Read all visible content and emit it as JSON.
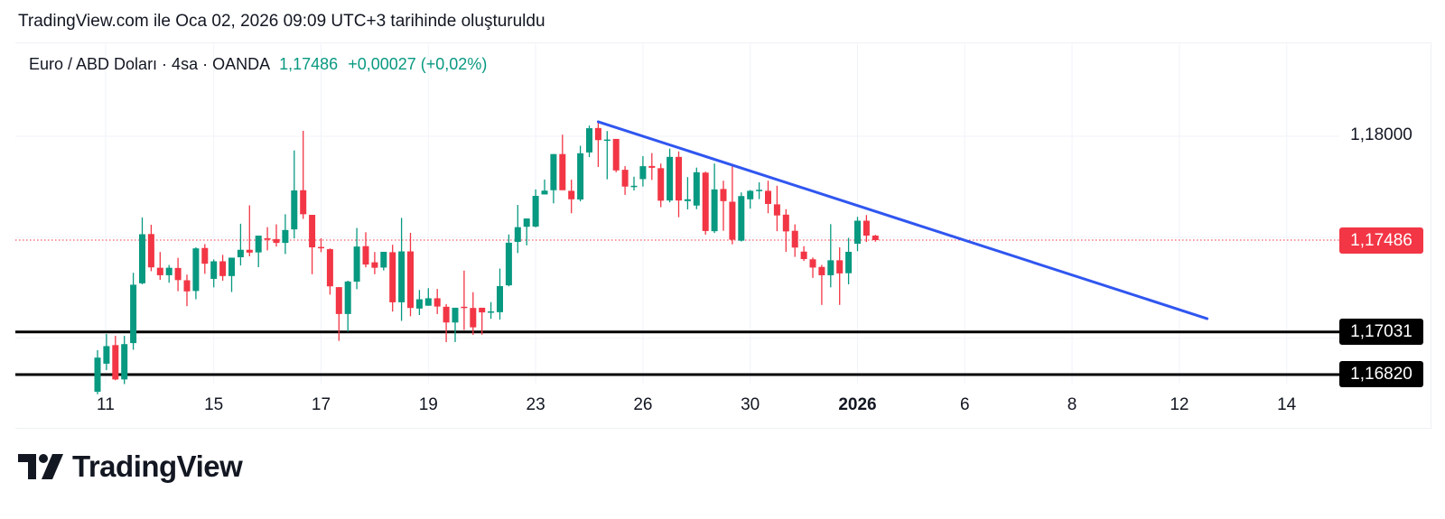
{
  "header": {
    "created_text": "TradingView.com ile Oca 02, 2026 09:09 UTC+3 tarihinde oluşturuldu"
  },
  "legend": {
    "symbol": "Euro / ABD Doları · 4sa · OANDA",
    "last": "1,17486",
    "change": "+0,00027 (+0,02%)"
  },
  "colors": {
    "up": "#089981",
    "down": "#F23645",
    "trendline": "#3056F0",
    "hline": "#000000",
    "grid": "#F0F3FA"
  },
  "price_labels": {
    "grid_1": "1,18000",
    "last": "1,17486",
    "level_1": "1,17031",
    "level_2": "1,16820"
  },
  "logo": {
    "text": "TradingView"
  },
  "chart_data": {
    "type": "candlestick",
    "title": "Euro / ABD Doları · 4sa · OANDA",
    "x_unit": "bar index (4h)",
    "x_ticks": [
      {
        "label": "11",
        "index": 0.9
      },
      {
        "label": "15",
        "index": 13
      },
      {
        "label": "17",
        "index": 25
      },
      {
        "label": "19",
        "index": 37
      },
      {
        "label": "23",
        "index": 49
      },
      {
        "label": "26",
        "index": 61
      },
      {
        "label": "30",
        "index": 73
      },
      {
        "label": "2026",
        "index": 85,
        "bold": true
      },
      {
        "label": "6",
        "index": 97
      },
      {
        "label": "8",
        "index": 109
      },
      {
        "label": "12",
        "index": 121
      },
      {
        "label": "14",
        "index": 133
      }
    ],
    "y_grid": [
      1.17,
      1.175,
      1.18
    ],
    "ylim": [
      1.1665,
      1.1815
    ],
    "last_price": 1.17486,
    "horizontal_lines": [
      1.17031,
      1.1682
    ],
    "trendline": {
      "from": {
        "index": 56,
        "price": 1.18072
      },
      "to": {
        "index": 124.1,
        "price": 1.17097
      }
    },
    "ohlc": [
      [
        1.16735,
        1.16941,
        1.16723,
        1.16904
      ],
      [
        1.16874,
        1.17021,
        1.16842,
        1.16961
      ],
      [
        1.16966,
        1.17012,
        1.16792,
        1.16796
      ],
      [
        1.16796,
        1.17012,
        1.16773,
        1.16971
      ],
      [
        1.16976,
        1.17324,
        1.16943,
        1.17265
      ],
      [
        1.17272,
        1.17598,
        1.17267,
        1.17515
      ],
      [
        1.17516,
        1.17562,
        1.17332,
        1.17351
      ],
      [
        1.17349,
        1.17427,
        1.17289,
        1.17312
      ],
      [
        1.17312,
        1.17363,
        1.17275,
        1.17349
      ],
      [
        1.17348,
        1.17398,
        1.17233,
        1.17288
      ],
      [
        1.17287,
        1.17315,
        1.17159,
        1.17232
      ],
      [
        1.17234,
        1.1745,
        1.17193,
        1.17445
      ],
      [
        1.17447,
        1.17466,
        1.17319,
        1.17369
      ],
      [
        1.17294,
        1.1739,
        1.17252,
        1.17381
      ],
      [
        1.17381,
        1.17413,
        1.17285,
        1.17308
      ],
      [
        1.17308,
        1.17399,
        1.17229,
        1.17399
      ],
      [
        1.17401,
        1.17567,
        1.1736,
        1.17438
      ],
      [
        1.17438,
        1.17658,
        1.17406,
        1.17424
      ],
      [
        1.17425,
        1.17508,
        1.17352,
        1.17508
      ],
      [
        1.17495,
        1.1755,
        1.17435,
        1.17491
      ],
      [
        1.17491,
        1.17564,
        1.17454,
        1.17472
      ],
      [
        1.17472,
        1.17614,
        1.17417,
        1.17536
      ],
      [
        1.17539,
        1.1793,
        1.17494,
        1.17732
      ],
      [
        1.17733,
        1.18027,
        1.17591,
        1.17614
      ],
      [
        1.17611,
        1.17611,
        1.17317,
        1.1745
      ],
      [
        1.17452,
        1.17495,
        1.17426,
        1.17449
      ],
      [
        1.17441,
        1.17445,
        1.17216,
        1.17257
      ],
      [
        1.17253,
        1.17253,
        1.16987,
        1.1712
      ],
      [
        1.1712,
        1.17285,
        1.17033,
        1.17281
      ],
      [
        1.1728,
        1.17546,
        1.17243,
        1.17454
      ],
      [
        1.17456,
        1.17525,
        1.17351,
        1.17365
      ],
      [
        1.17376,
        1.17427,
        1.17317,
        1.17349
      ],
      [
        1.1735,
        1.17428,
        1.17336,
        1.17428
      ],
      [
        1.17426,
        1.17463,
        1.17132,
        1.17178
      ],
      [
        1.17178,
        1.17596,
        1.17086,
        1.1743
      ],
      [
        1.1743,
        1.17522,
        1.17109,
        1.1715
      ],
      [
        1.17147,
        1.17239,
        1.17115,
        1.17193
      ],
      [
        1.17161,
        1.17248,
        1.17161,
        1.17198
      ],
      [
        1.17198,
        1.17244,
        1.1712,
        1.17157
      ],
      [
        1.17156,
        1.17169,
        1.16981,
        1.17078
      ],
      [
        1.17078,
        1.17151,
        1.16981,
        1.17151
      ],
      [
        1.17156,
        1.17335,
        1.17041,
        1.17151
      ],
      [
        1.1715,
        1.17228,
        1.17017,
        1.17054
      ],
      [
        1.17151,
        1.17151,
        1.17018,
        1.17128
      ],
      [
        1.17128,
        1.17179,
        1.17096,
        1.17133
      ],
      [
        1.17129,
        1.17345,
        1.17092,
        1.17258
      ],
      [
        1.17262,
        1.17514,
        1.17257,
        1.17473
      ],
      [
        1.17477,
        1.1766,
        1.17422,
        1.1755
      ],
      [
        1.17552,
        1.17593,
        1.1746,
        1.17593
      ],
      [
        1.17553,
        1.17737,
        1.17549,
        1.17705
      ],
      [
        1.17712,
        1.17786,
        1.17712,
        1.17731
      ],
      [
        1.17733,
        1.17912,
        1.17668,
        1.17912
      ],
      [
        1.17912,
        1.18008,
        1.17733,
        1.17733
      ],
      [
        1.1773,
        1.17785,
        1.17619,
        1.17688
      ],
      [
        1.17687,
        1.17953,
        1.17678,
        1.17916
      ],
      [
        1.1792,
        1.18053,
        1.17897,
        1.1804
      ],
      [
        1.18041,
        1.18073,
        1.17848,
        1.17981
      ],
      [
        1.1798,
        1.18026,
        1.17787,
        1.17984
      ],
      [
        1.17987,
        1.17987,
        1.17822,
        1.17831
      ],
      [
        1.17834,
        1.17852,
        1.1771,
        1.17751
      ],
      [
        1.1775,
        1.178,
        1.17732,
        1.17755
      ],
      [
        1.17788,
        1.17902,
        1.17751,
        1.17852
      ],
      [
        1.17853,
        1.17917,
        1.17784,
        1.17844
      ],
      [
        1.17842,
        1.17865,
        1.17649,
        1.17681
      ],
      [
        1.17682,
        1.17939,
        1.17673,
        1.17898
      ],
      [
        1.17898,
        1.17925,
        1.17599,
        1.17682
      ],
      [
        1.17679,
        1.17798,
        1.17638,
        1.17688
      ],
      [
        1.17657,
        1.17845,
        1.17639,
        1.17822
      ],
      [
        1.1782,
        1.17825,
        1.17513,
        1.17531
      ],
      [
        1.1753,
        1.17865,
        1.17521,
        1.17737
      ],
      [
        1.17739,
        1.1778,
        1.17532,
        1.17679
      ],
      [
        1.17676,
        1.17864,
        1.17465,
        1.17488
      ],
      [
        1.17483,
        1.17722,
        1.17479,
        1.17704
      ],
      [
        1.17688,
        1.17734,
        1.17642,
        1.1773
      ],
      [
        1.17731,
        1.17772,
        1.17689,
        1.17735
      ],
      [
        1.1773,
        1.1778,
        1.17619,
        1.17665
      ],
      [
        1.17663,
        1.17755,
        1.1753,
        1.17608
      ],
      [
        1.17612,
        1.17639,
        1.17428,
        1.17529
      ],
      [
        1.17532,
        1.17564,
        1.17403,
        1.17449
      ],
      [
        1.17429,
        1.17456,
        1.17383,
        1.17392
      ],
      [
        1.17391,
        1.174,
        1.17299,
        1.1735
      ],
      [
        1.17353,
        1.17363,
        1.17165,
        1.17312
      ],
      [
        1.17312,
        1.17565,
        1.17252,
        1.17386
      ],
      [
        1.17386,
        1.1745,
        1.17165,
        1.17321
      ],
      [
        1.17322,
        1.17497,
        1.17267,
        1.17428
      ],
      [
        1.17468,
        1.17601,
        1.17431,
        1.17582
      ],
      [
        1.17582,
        1.1761,
        1.17477,
        1.17508
      ],
      [
        1.17508,
        1.17512,
        1.17478,
        1.17486
      ]
    ]
  }
}
